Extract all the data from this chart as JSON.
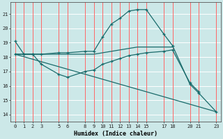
{
  "xlabel": "Humidex (Indice chaleur)",
  "bg_color": "#cce8e8",
  "line_color": "#1a6b6b",
  "grid_color_h": "#ffffff",
  "grid_color_v": "#ff6666",
  "ylim": [
    13.5,
    21.8
  ],
  "xlim": [
    -0.5,
    23.5
  ],
  "yticks": [
    14,
    15,
    16,
    17,
    18,
    19,
    20,
    21
  ],
  "xticks": [
    0,
    1,
    2,
    3,
    5,
    6,
    8,
    9,
    10,
    11,
    12,
    13,
    14,
    15,
    17,
    18,
    20,
    21,
    23
  ],
  "line1_x": [
    0,
    1,
    2,
    3,
    5,
    6,
    8,
    9,
    10,
    11,
    12,
    13,
    14,
    15,
    17,
    18,
    20,
    21,
    23
  ],
  "line1_y": [
    19.1,
    18.2,
    18.2,
    18.2,
    18.3,
    18.3,
    18.4,
    18.4,
    19.4,
    20.3,
    20.7,
    21.2,
    21.3,
    21.3,
    19.6,
    18.8,
    16.1,
    15.5,
    14.2
  ],
  "line2_x": [
    0,
    1,
    2,
    3,
    5,
    6,
    8,
    9,
    10,
    11,
    12,
    13,
    14,
    15,
    17,
    18,
    20,
    21
  ],
  "line2_y": [
    18.2,
    18.2,
    18.2,
    17.5,
    16.8,
    16.6,
    17.0,
    17.1,
    17.5,
    17.7,
    17.9,
    18.1,
    18.2,
    18.3,
    18.4,
    18.5,
    16.2,
    15.6
  ],
  "line3_x": [
    0,
    1,
    2,
    3,
    5,
    6,
    8,
    9,
    10,
    11,
    12,
    13,
    14,
    15,
    17,
    18
  ],
  "line3_y": [
    18.2,
    18.2,
    18.2,
    18.2,
    18.2,
    18.2,
    18.2,
    18.2,
    18.3,
    18.4,
    18.5,
    18.6,
    18.7,
    18.7,
    18.7,
    18.7
  ],
  "line4_x": [
    0,
    23
  ],
  "line4_y": [
    18.2,
    14.2
  ],
  "tick_fontsize": 5.0,
  "xlabel_fontsize": 6.0
}
